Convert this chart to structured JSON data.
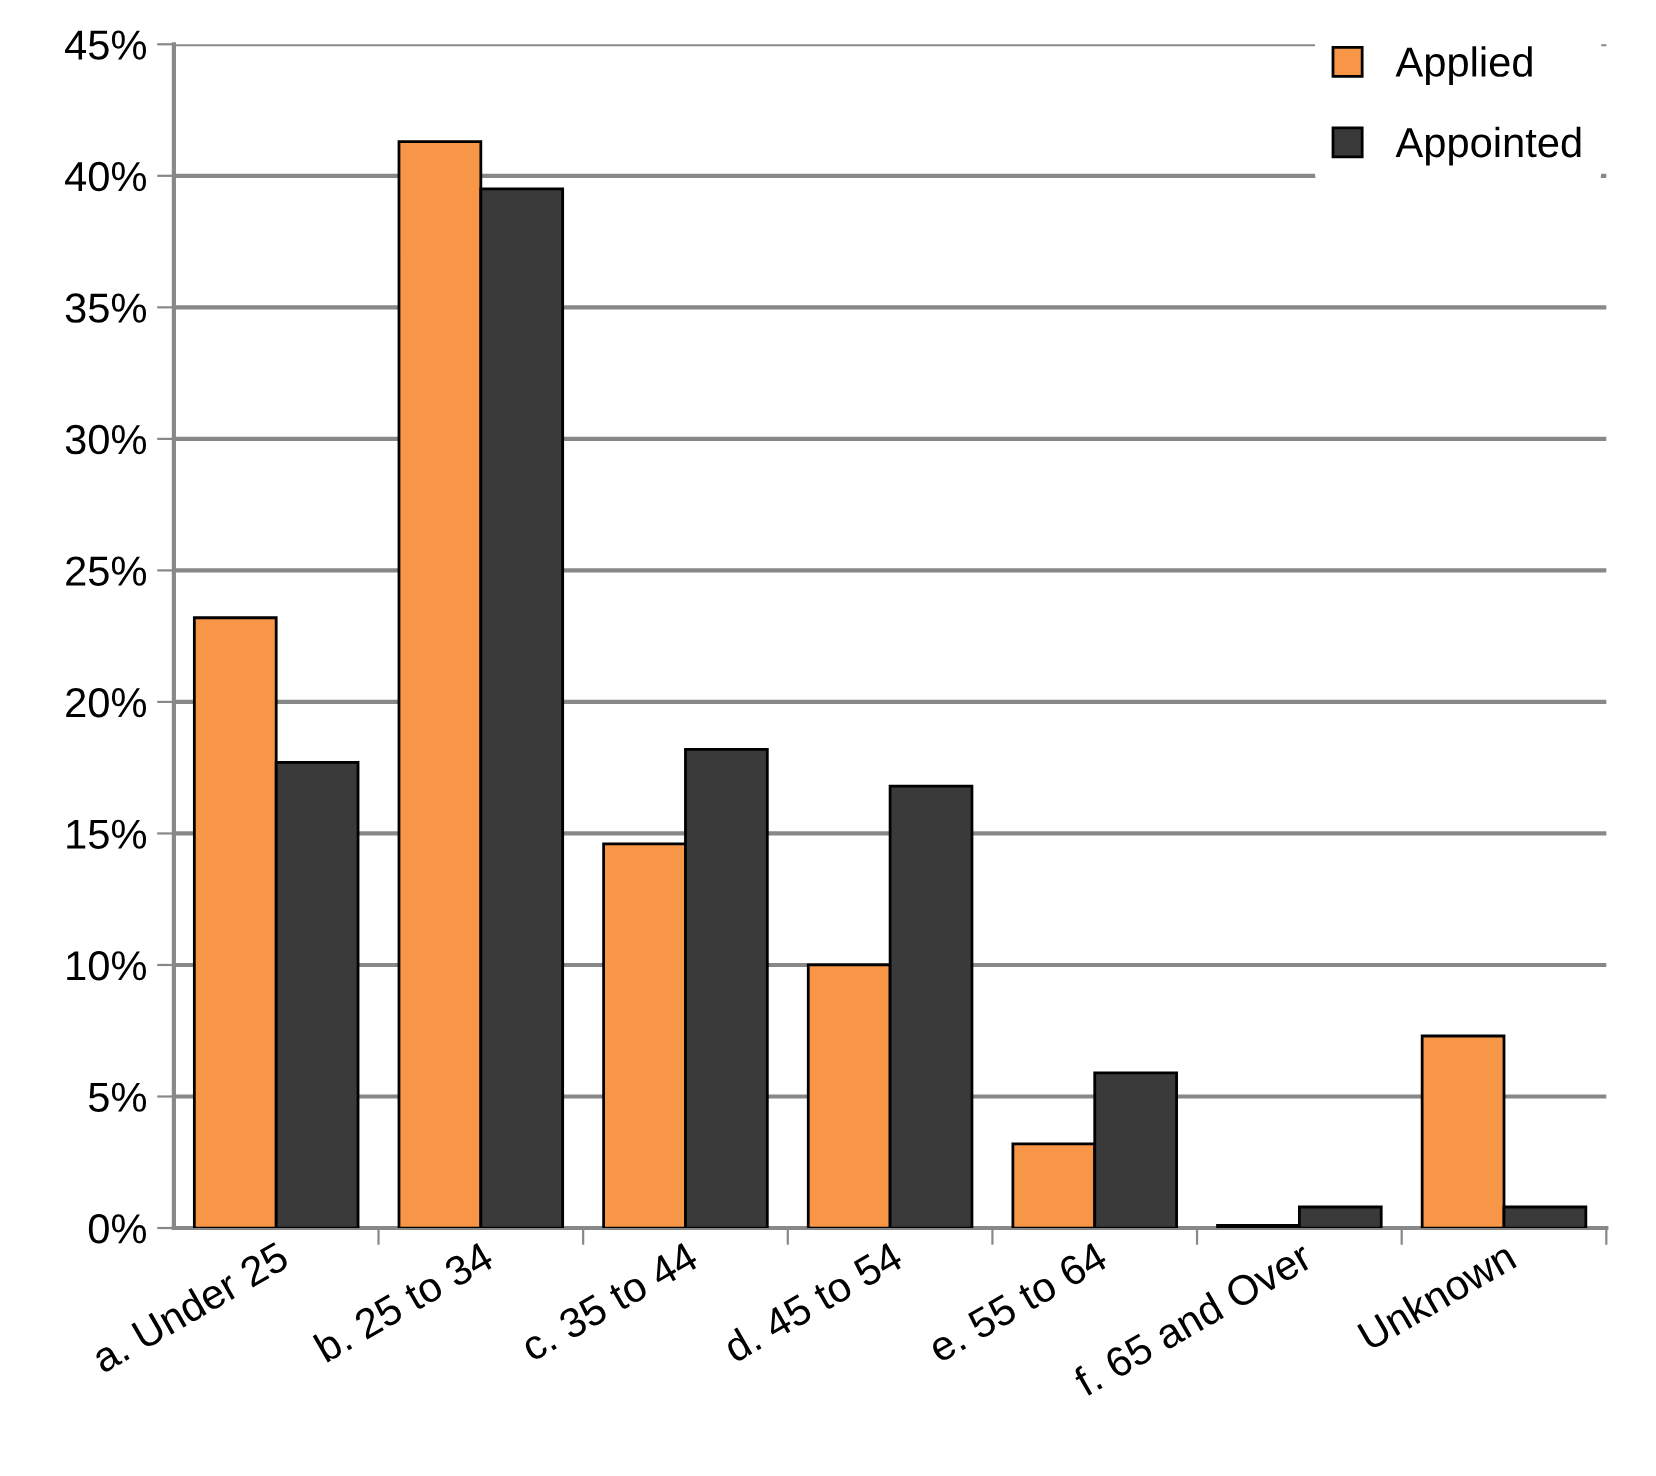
{
  "chart_data": {
    "type": "bar",
    "categories": [
      "a. Under 25",
      "b. 25 to 34",
      "c. 35 to 44",
      "d. 45 to 54",
      "e. 55 to 64",
      "f. 65 and Over",
      "Unknown"
    ],
    "series": [
      {
        "name": "Applied",
        "color": "#f79646",
        "values": [
          23.2,
          41.3,
          14.6,
          10.0,
          3.2,
          0.1,
          7.3
        ]
      },
      {
        "name": "Appointed",
        "color": "#3a3a3a",
        "values": [
          17.7,
          39.5,
          18.2,
          16.8,
          5.9,
          0.8,
          0.8
        ]
      }
    ],
    "ylim": [
      0,
      45
    ],
    "yticks": [
      {
        "value": 0,
        "label": "0%"
      },
      {
        "value": 5,
        "label": "5%"
      },
      {
        "value": 10,
        "label": "10%"
      },
      {
        "value": 15,
        "label": "15%"
      },
      {
        "value": 20,
        "label": "20%"
      },
      {
        "value": 25,
        "label": "25%"
      },
      {
        "value": 30,
        "label": "30%"
      },
      {
        "value": 35,
        "label": "35%"
      },
      {
        "value": 40,
        "label": "40%"
      },
      {
        "value": 45,
        "label": "45%"
      }
    ],
    "grid": "y",
    "legend": "top right"
  }
}
